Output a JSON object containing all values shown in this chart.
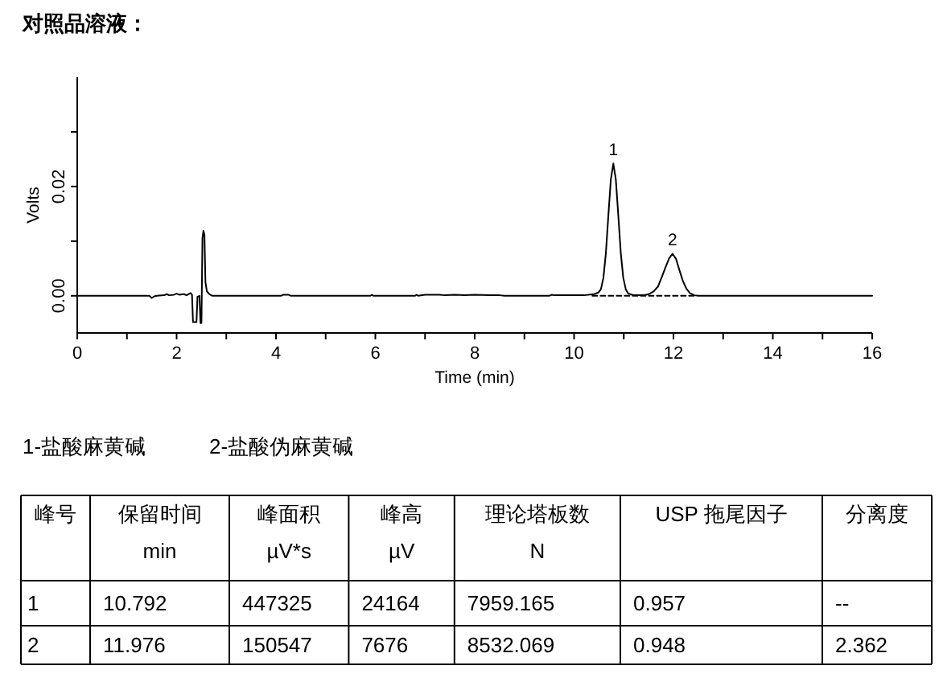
{
  "chart_data": {
    "type": "line",
    "title": "对照品溶液：",
    "xlabel": "Time (min)",
    "ylabel": "Volts",
    "xlim": [
      0,
      16
    ],
    "xticks": [
      0,
      {
        "value": 1,
        "label": null
      },
      2,
      {
        "value": 3,
        "label": null
      },
      4,
      {
        "value": 5,
        "label": null
      },
      6,
      {
        "value": 7,
        "label": null
      },
      8,
      {
        "value": 9,
        "label": null
      },
      10,
      {
        "value": 11,
        "label": null
      },
      12,
      {
        "value": 13,
        "label": null
      },
      14,
      {
        "value": 15,
        "label": null
      },
      16
    ],
    "ylim": [
      -0.0068,
      0.04
    ],
    "yticks": [
      {
        "value": 0,
        "label": "0.00"
      },
      {
        "value": 0.01,
        "label": null
      },
      {
        "value": 0.02,
        "label": "0.02"
      },
      {
        "value": 0.03,
        "label": null
      }
    ],
    "series": [
      {
        "color": "#000000",
        "x": [
          0,
          1.45,
          1.5,
          1.55,
          1.6,
          1.75,
          1.8,
          1.85,
          1.95,
          2.0,
          2.05,
          2.15,
          2.2,
          2.28,
          2.31,
          2.33,
          2.4,
          2.42,
          2.46,
          2.48,
          2.5,
          2.52,
          2.54,
          2.56,
          2.58,
          2.61,
          2.66,
          2.72,
          4.1,
          4.15,
          4.25,
          4.3,
          5.9,
          5.93,
          5.96,
          6.8,
          6.83,
          6.86,
          7.0,
          7.3,
          7.4,
          7.6,
          7.8,
          8.0,
          8.3,
          8.5,
          8.6,
          9.5,
          9.55,
          9.6,
          10.2,
          10.4,
          10.49,
          10.54,
          10.59,
          10.64,
          10.69,
          10.74,
          10.79,
          10.84,
          10.89,
          10.94,
          10.99,
          11.04,
          11.09,
          11.2,
          11.4,
          11.5,
          11.6,
          11.69,
          11.76,
          11.84,
          11.91,
          11.98,
          12.05,
          12.12,
          12.19,
          12.26,
          12.33,
          12.42,
          12.5,
          16
        ],
        "values": [
          0,
          0,
          -0.0004,
          -0.0001,
          0,
          0.0001,
          0.0003,
          0.0001,
          0.0002,
          0.0004,
          0.0002,
          0.0003,
          0.0001,
          0.0005,
          0.0002,
          -0.0048,
          -0.0048,
          -0.0002,
          0,
          -0.005,
          -0.005,
          0.0105,
          0.0119,
          0.0112,
          0.0025,
          0.0008,
          0.0003,
          0,
          0,
          0.0002,
          0.0002,
          0,
          0,
          0.0002,
          0,
          0,
          0.0002,
          0,
          0.0002,
          0.0002,
          0.0001,
          0.0002,
          0.0001,
          0.0002,
          0.0001,
          0.0001,
          0,
          0,
          0.0002,
          0.0001,
          0.0001,
          0.0003,
          0.0006,
          0.0012,
          0.0033,
          0.0078,
          0.0147,
          0.0213,
          0.0242,
          0.0213,
          0.0147,
          0.0078,
          0.0033,
          0.0012,
          0.0004,
          0.0001,
          0.0001,
          0.0003,
          0.0008,
          0.0017,
          0.0033,
          0.0052,
          0.0068,
          0.0077,
          0.0068,
          0.0047,
          0.0027,
          0.0013,
          0.0005,
          0.0001,
          0,
          0
        ]
      },
      {
        "color": "#000000",
        "line_style": "dashed",
        "x": [
          10.37,
          12.42
        ],
        "values": [
          0,
          0
        ]
      }
    ],
    "line_style": "solid",
    "annotations": [
      {
        "text": "1",
        "x": 10.79,
        "y": 0.0242
      },
      {
        "text": "2",
        "x": 11.98,
        "y": 0.0077
      },
      "1-盐酸麻黄碱",
      "2-盐酸伪麻黄碱",
      "峰号",
      "保留时间\nmin",
      "峰面积\nµV*s",
      "峰高\nµV",
      "理论塔板数\nN",
      "USP 拖尾因子",
      "分离度",
      "1",
      "10.792",
      "447325",
      "24164",
      "7959.165",
      "0.957",
      "--",
      "2",
      "11.976",
      "150547",
      "7676",
      "8532.069",
      "0.948",
      "2.362"
    ]
  }
}
